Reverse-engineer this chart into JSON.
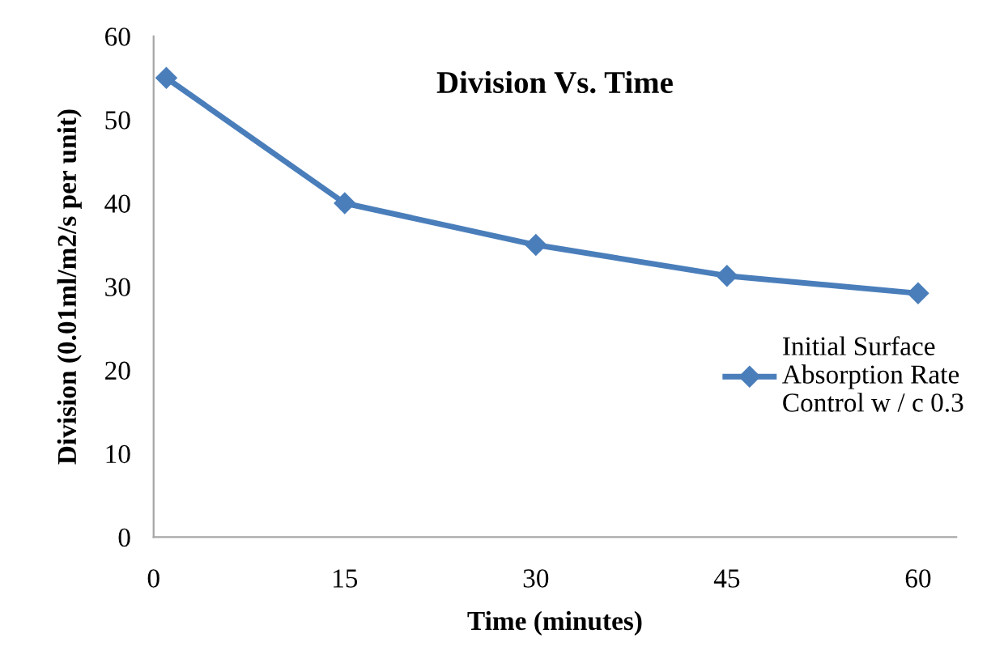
{
  "chart_data": {
    "type": "line",
    "title": "Division Vs. Time",
    "xlabel": "Time (minutes)",
    "ylabel": "Division (0.01ml/m2/s per unit)",
    "x": [
      1,
      15,
      30,
      45,
      60
    ],
    "series": [
      {
        "name": "Initial Surface\nAbsorption Rate\nControl w / c 0.3",
        "color": "#4a7ebb",
        "values": [
          55,
          40,
          35,
          31.3,
          29.2
        ]
      }
    ],
    "xlim": [
      0,
      63
    ],
    "xticks": [
      0,
      15,
      30,
      45,
      60
    ],
    "ylim": [
      0,
      60
    ],
    "yticks": [
      0,
      10,
      20,
      30,
      40,
      50,
      60
    ],
    "grid": false,
    "legend": "right",
    "marker": "diamond",
    "line_style": "solid"
  }
}
